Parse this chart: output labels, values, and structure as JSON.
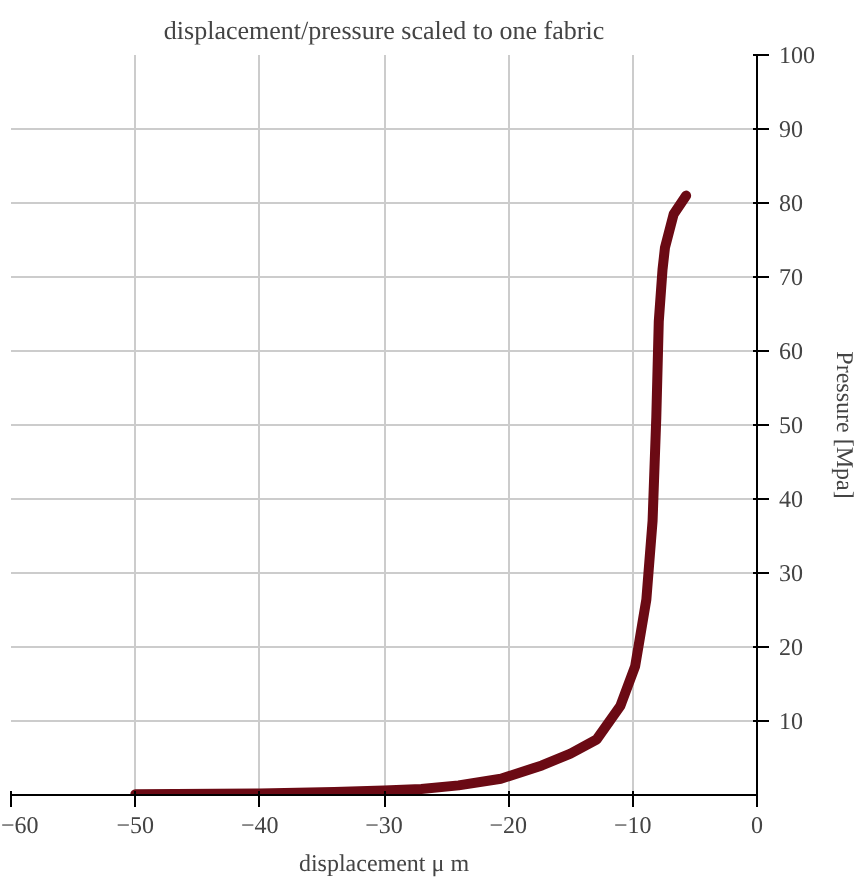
{
  "chart_data": {
    "type": "line",
    "title": "displacement/pressure scaled to one fabric",
    "xlabel": "displacement μ m",
    "ylabel": "Pressure [Mpa]",
    "x": [
      -50,
      -40,
      -34,
      -30,
      -27,
      -24,
      -20.6,
      -17.3,
      -15,
      -12.9,
      -11,
      -9.8,
      -8.9,
      -8.4,
      -8.1,
      -7.9,
      -7.6,
      -7.4,
      -6.7,
      -5.7
    ],
    "series": [
      {
        "color": "#6b0a14",
        "values": [
          0.1,
          0.2,
          0.4,
          0.6,
          0.8,
          1.3,
          2.2,
          4,
          5.6,
          7.5,
          12,
          17.4,
          26.4,
          37,
          51,
          64,
          71,
          74,
          78.5,
          81
        ]
      }
    ],
    "xlim": [
      -60,
      0
    ],
    "ylim": [
      0,
      100
    ],
    "xticks": [
      -60,
      -50,
      -40,
      -30,
      -20,
      -10,
      0
    ],
    "yticks": [
      10,
      20,
      30,
      40,
      50,
      60,
      70,
      80,
      90,
      100
    ],
    "grid": true,
    "line_style": "solid",
    "marker": "none"
  }
}
